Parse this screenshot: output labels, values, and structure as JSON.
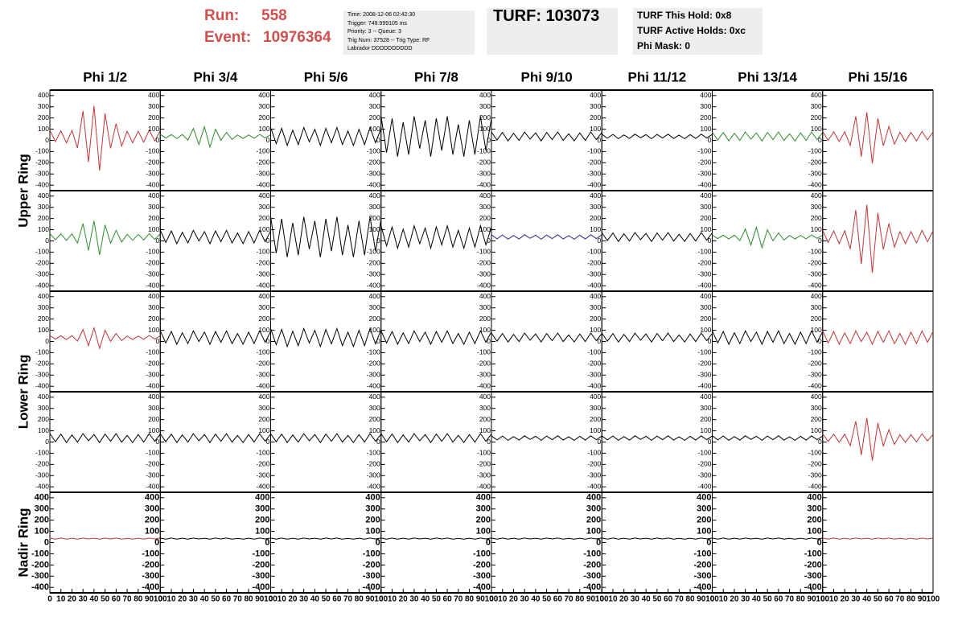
{
  "header": {
    "run_label": "Run:",
    "run": "558",
    "event_label": "Event:",
    "event": "10976364",
    "info": [
      "Time: 2008-12-06 02:42:30",
      "Trigger: 749.999105 ms",
      "Priority: 3 -- Queue: 3",
      "Trig Num: 37528 -- Trig Type: RF",
      "Labrador DDDDDDDDDD"
    ],
    "turf": "TURF: 103073",
    "turf_info": [
      "TURF This Hold: 0x8",
      "TURF Active Holds: 0xc",
      "Phi Mask: 0"
    ]
  },
  "chart_data": {
    "type": "line",
    "columns": [
      "Phi 1/2",
      "Phi 3/4",
      "Phi 5/6",
      "Phi 7/8",
      "Phi 9/10",
      "Phi 11/12",
      "Phi 13/14",
      "Phi 15/16"
    ],
    "rings": [
      "Upper Ring",
      "Lower Ring",
      "Nadir Ring"
    ],
    "xlim": [
      0,
      100
    ],
    "xticks": [
      0,
      10,
      20,
      30,
      40,
      50,
      60,
      70,
      80,
      90,
      100
    ],
    "ylim": [
      -420,
      420
    ],
    "yticks": [
      -400,
      -300,
      -200,
      -100,
      0,
      100,
      200,
      300,
      400
    ],
    "x": [
      0,
      5,
      10,
      15,
      20,
      25,
      30,
      35,
      40,
      45,
      50,
      55,
      60,
      65,
      70,
      75,
      80,
      85,
      90,
      95,
      100
    ],
    "panels": [
      {
        "color": "#c03535",
        "values": [
          92,
          -11,
          86,
          -22,
          88,
          -68,
          263,
          -193,
          309,
          -269,
          240,
          -71,
          149,
          -51,
          81,
          -22,
          81,
          -16,
          92,
          -5,
          86
        ]
      },
      {
        "color": "#2e8b2e",
        "values": [
          53,
          21,
          51,
          17,
          52,
          3,
          107,
          -37,
          121,
          -61,
          100,
          1,
          71,
          8,
          49,
          17,
          49,
          19,
          53,
          22,
          51
        ]
      },
      {
        "color": "#000000",
        "values": [
          115,
          -29,
          107,
          -45,
          91,
          -37,
          115,
          -13,
          99,
          -45,
          107,
          -21,
          115,
          -37,
          83,
          -45,
          99,
          -37,
          115,
          -21,
          107
        ]
      },
      {
        "color": "#000000",
        "values": [
          215,
          -109,
          197,
          -145,
          161,
          -127,
          215,
          -73,
          179,
          -145,
          197,
          -91,
          215,
          -127,
          143,
          -145,
          179,
          -127,
          215,
          -91,
          197
        ]
      },
      {
        "color": "#000000",
        "values": [
          75,
          3,
          71,
          -5,
          63,
          -1,
          75,
          11,
          67,
          -5,
          71,
          7,
          75,
          -1,
          59,
          -5,
          67,
          -1,
          75,
          7,
          71
        ]
      },
      {
        "color": "#000000",
        "values": [
          55,
          19,
          53,
          15,
          49,
          17,
          55,
          23,
          51,
          15,
          53,
          21,
          55,
          17,
          47,
          15,
          51,
          17,
          55,
          21,
          53
        ]
      },
      {
        "color": "#2e8b2e",
        "values": [
          75,
          3,
          71,
          -5,
          63,
          -1,
          75,
          11,
          67,
          -5,
          71,
          7,
          75,
          -1,
          59,
          -5,
          67,
          -1,
          75,
          7,
          71
        ]
      },
      {
        "color": "#c03535",
        "values": [
          80,
          -1,
          76,
          -10,
          77,
          -46,
          215,
          -145,
          251,
          -205,
          197,
          -49,
          125,
          -33,
          71,
          -10,
          71,
          -6,
          80,
          4,
          76
        ]
      },
      {
        "color": "#2e8b2e",
        "values": [
          65,
          11,
          62,
          5,
          63,
          -19,
          155,
          -85,
          179,
          -125,
          143,
          -21,
          95,
          -10,
          59,
          5,
          59,
          8,
          65,
          14,
          62
        ]
      },
      {
        "color": "#000000",
        "values": [
          95,
          -13,
          89,
          -25,
          77,
          -19,
          95,
          -1,
          83,
          -25,
          89,
          -7,
          95,
          -19,
          71,
          -25,
          83,
          -19,
          95,
          -7,
          89
        ]
      },
      {
        "color": "#000000",
        "values": [
          215,
          -109,
          197,
          -145,
          161,
          -127,
          215,
          -73,
          179,
          -145,
          197,
          -91,
          215,
          -127,
          143,
          -145,
          179,
          -127,
          215,
          -91,
          197
        ]
      },
      {
        "color": "#000000",
        "values": [
          135,
          -45,
          125,
          -65,
          105,
          -55,
          135,
          -25,
          115,
          -65,
          125,
          -35,
          135,
          -55,
          95,
          -65,
          115,
          -55,
          135,
          -35,
          125
        ]
      },
      {
        "color": "#2a2a8a",
        "values": [
          55,
          19,
          53,
          15,
          49,
          17,
          55,
          23,
          51,
          15,
          53,
          21,
          55,
          17,
          47,
          15,
          51,
          17,
          55,
          21,
          53
        ]
      },
      {
        "color": "#000000",
        "values": [
          75,
          3,
          71,
          -5,
          63,
          -1,
          75,
          11,
          67,
          -5,
          71,
          7,
          75,
          -1,
          59,
          -5,
          67,
          -1,
          75,
          7,
          71
        ]
      },
      {
        "color": "#2e8b2e",
        "values": [
          53,
          21,
          51,
          17,
          52,
          3,
          107,
          -37,
          121,
          -61,
          100,
          1,
          71,
          8,
          49,
          17,
          49,
          19,
          53,
          22,
          51
        ]
      },
      {
        "color": "#c03535",
        "values": [
          95,
          -13,
          89,
          -25,
          91,
          -73,
          275,
          -205,
          323,
          -285,
          251,
          -77,
          155,
          -55,
          83,
          -25,
          83,
          -19,
          95,
          -7,
          89
        ]
      },
      {
        "color": "#c03535",
        "values": [
          53,
          21,
          51,
          17,
          52,
          3,
          107,
          -37,
          121,
          -61,
          100,
          1,
          71,
          8,
          49,
          17,
          49,
          19,
          53,
          22,
          51
        ]
      },
      {
        "color": "#000000",
        "values": [
          95,
          -13,
          89,
          -25,
          77,
          -19,
          95,
          -1,
          83,
          -25,
          89,
          -7,
          95,
          -19,
          71,
          -25,
          83,
          -19,
          95,
          -7,
          89
        ]
      },
      {
        "color": "#000000",
        "values": [
          115,
          -29,
          107,
          -45,
          91,
          -37,
          115,
          -13,
          99,
          -45,
          107,
          -21,
          115,
          -37,
          83,
          -45,
          99,
          -37,
          115,
          -21,
          107
        ]
      },
      {
        "color": "#000000",
        "values": [
          95,
          -13,
          89,
          -25,
          77,
          -19,
          95,
          -1,
          83,
          -25,
          89,
          -7,
          95,
          -19,
          71,
          -25,
          83,
          -19,
          95,
          -7,
          89
        ]
      },
      {
        "color": "#000000",
        "values": [
          75,
          3,
          71,
          -5,
          63,
          -1,
          75,
          11,
          67,
          -5,
          71,
          7,
          75,
          -1,
          59,
          -5,
          67,
          -1,
          75,
          7,
          71
        ]
      },
      {
        "color": "#000000",
        "values": [
          75,
          3,
          71,
          -5,
          63,
          -1,
          75,
          11,
          67,
          -5,
          71,
          7,
          75,
          -1,
          59,
          -5,
          67,
          -1,
          75,
          7,
          71
        ]
      },
      {
        "color": "#000000",
        "values": [
          95,
          -13,
          89,
          -25,
          77,
          -19,
          95,
          -1,
          83,
          -25,
          89,
          -7,
          95,
          -19,
          71,
          -25,
          83,
          -19,
          95,
          -7,
          89
        ]
      },
      {
        "color": "#c03535",
        "values": [
          95,
          -13,
          89,
          -25,
          77,
          -19,
          95,
          -1,
          83,
          -25,
          89,
          -7,
          95,
          -19,
          71,
          -25,
          83,
          -19,
          95,
          -7,
          89
        ]
      },
      {
        "color": "#000000",
        "values": [
          75,
          3,
          71,
          -5,
          63,
          -1,
          75,
          11,
          67,
          -5,
          71,
          7,
          75,
          -1,
          59,
          -5,
          67,
          -1,
          75,
          7,
          71
        ]
      },
      {
        "color": "#000000",
        "values": [
          75,
          3,
          71,
          -5,
          63,
          -1,
          75,
          11,
          67,
          -5,
          71,
          7,
          75,
          -1,
          59,
          -5,
          67,
          -1,
          75,
          7,
          71
        ]
      },
      {
        "color": "#000000",
        "values": [
          75,
          3,
          71,
          -5,
          63,
          -1,
          75,
          11,
          67,
          -5,
          71,
          7,
          75,
          -1,
          59,
          -5,
          67,
          -1,
          75,
          7,
          71
        ]
      },
      {
        "color": "#000000",
        "values": [
          75,
          3,
          71,
          -5,
          63,
          -1,
          75,
          11,
          67,
          -5,
          71,
          7,
          75,
          -1,
          59,
          -5,
          67,
          -1,
          75,
          7,
          71
        ]
      },
      {
        "color": "#000000",
        "values": [
          55,
          19,
          53,
          15,
          49,
          17,
          55,
          23,
          51,
          15,
          53,
          21,
          55,
          17,
          47,
          15,
          51,
          17,
          55,
          21,
          53
        ]
      },
      {
        "color": "#000000",
        "values": [
          55,
          19,
          53,
          15,
          49,
          17,
          55,
          23,
          51,
          15,
          53,
          21,
          55,
          17,
          47,
          15,
          51,
          17,
          55,
          21,
          53
        ]
      },
      {
        "color": "#000000",
        "values": [
          55,
          19,
          53,
          15,
          49,
          17,
          55,
          23,
          51,
          15,
          53,
          21,
          55,
          17,
          47,
          15,
          51,
          17,
          55,
          21,
          53
        ]
      },
      {
        "color": "#c03535",
        "values": [
          73,
          5,
          69,
          -3,
          70,
          -33,
          185,
          -115,
          215,
          -165,
          170,
          -35,
          110,
          -21,
          65,
          -3,
          65,
          1,
          73,
          9,
          69
        ]
      },
      {
        "color": "#c03535",
        "values": [
          40,
          31,
          40,
          30,
          39,
          31,
          40,
          32,
          39,
          30,
          40,
          32,
          40,
          31,
          38,
          30,
          39,
          31,
          40,
          32,
          40
        ]
      },
      {
        "color": "#000000",
        "values": [
          40,
          31,
          40,
          30,
          39,
          31,
          40,
          32,
          39,
          30,
          40,
          32,
          40,
          31,
          38,
          30,
          39,
          31,
          40,
          32,
          40
        ]
      },
      {
        "color": "#000000",
        "values": [
          40,
          31,
          40,
          30,
          39,
          31,
          40,
          32,
          39,
          30,
          40,
          32,
          40,
          31,
          38,
          30,
          39,
          31,
          40,
          32,
          40
        ]
      },
      {
        "color": "#000000",
        "values": [
          40,
          31,
          40,
          30,
          39,
          31,
          40,
          32,
          39,
          30,
          40,
          32,
          40,
          31,
          38,
          30,
          39,
          31,
          40,
          32,
          40
        ]
      },
      {
        "color": "#000000",
        "values": [
          40,
          31,
          40,
          30,
          39,
          31,
          40,
          32,
          39,
          30,
          40,
          32,
          40,
          31,
          38,
          30,
          39,
          31,
          40,
          32,
          40
        ]
      },
      {
        "color": "#000000",
        "values": [
          40,
          31,
          40,
          30,
          39,
          31,
          40,
          32,
          39,
          30,
          40,
          32,
          40,
          31,
          38,
          30,
          39,
          31,
          40,
          32,
          40
        ]
      },
      {
        "color": "#000000",
        "values": [
          40,
          31,
          40,
          30,
          39,
          31,
          40,
          32,
          39,
          30,
          40,
          32,
          40,
          31,
          38,
          30,
          39,
          31,
          40,
          32,
          40
        ]
      },
      {
        "color": "#c03535",
        "values": [
          40,
          31,
          40,
          30,
          39,
          31,
          40,
          32,
          39,
          30,
          40,
          32,
          40,
          31,
          38,
          30,
          39,
          31,
          40,
          32,
          40
        ]
      }
    ]
  }
}
